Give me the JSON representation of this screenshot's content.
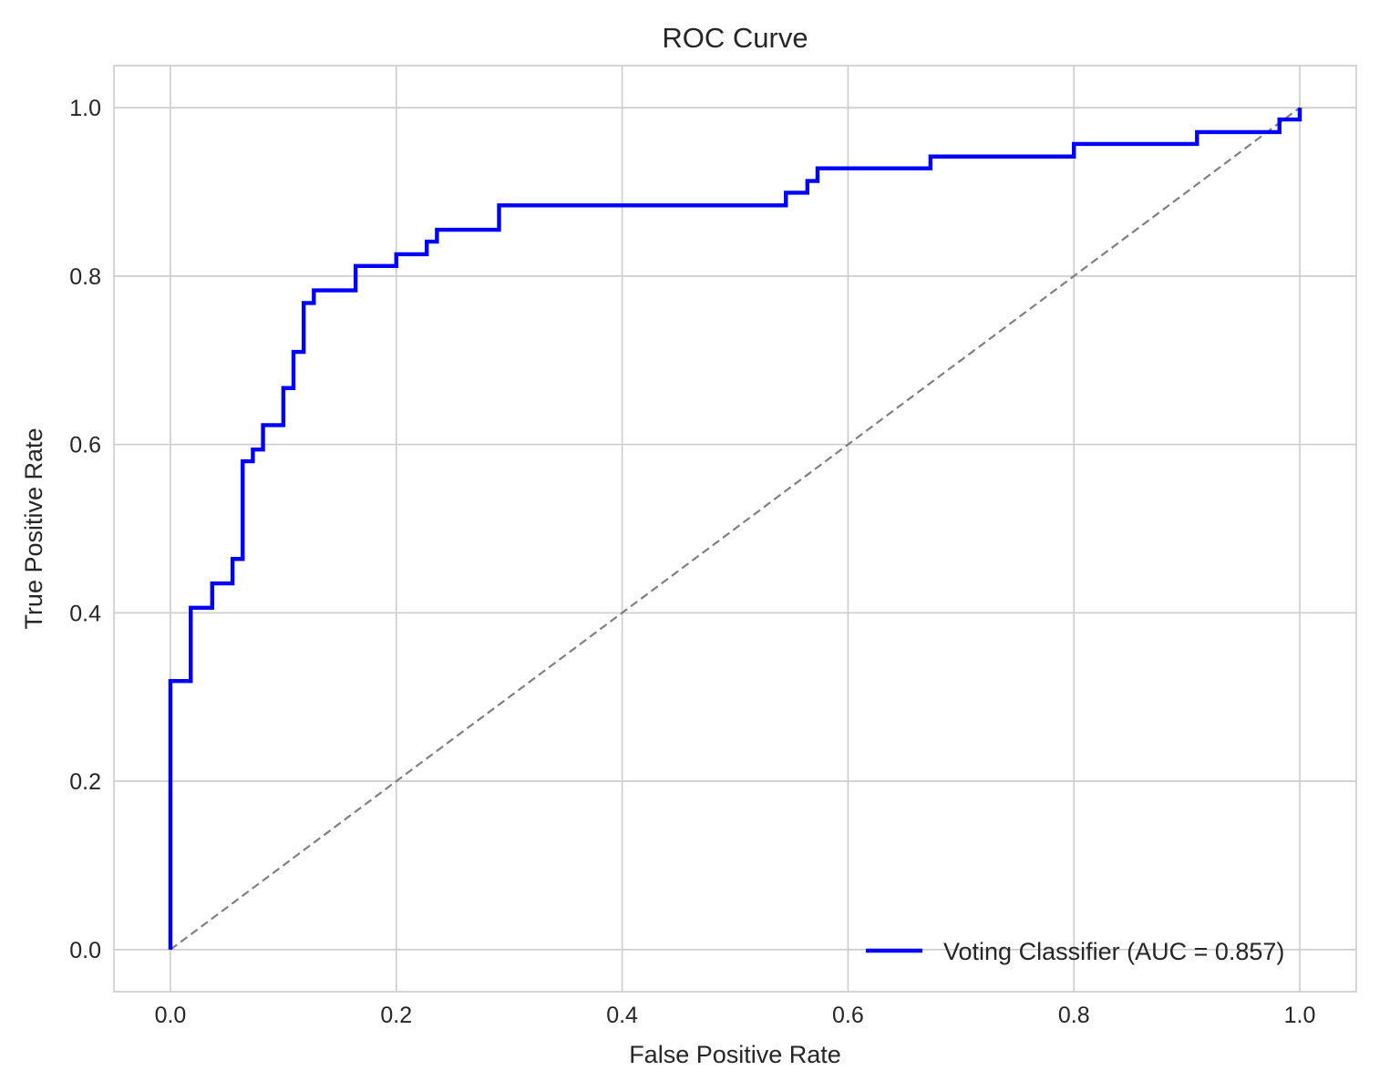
{
  "chart_data": {
    "type": "line",
    "title": "ROC Curve",
    "xlabel": "False Positive Rate",
    "ylabel": "True Positive Rate",
    "xlim": [
      -0.05,
      1.05
    ],
    "ylim": [
      -0.05,
      1.05
    ],
    "xticks": [
      0.0,
      0.2,
      0.4,
      0.6,
      0.8,
      1.0
    ],
    "yticks": [
      0.0,
      0.2,
      0.4,
      0.6,
      0.8,
      1.0
    ],
    "xtick_labels": [
      "0.0",
      "0.2",
      "0.4",
      "0.6",
      "0.8",
      "1.0"
    ],
    "ytick_labels": [
      "0.0",
      "0.2",
      "0.4",
      "0.6",
      "0.8",
      "1.0"
    ],
    "grid": true,
    "legend_position": "lower right",
    "series": [
      {
        "name": "Voting Classifier (AUC = 0.857)",
        "color": "#0000ff",
        "style": "solid",
        "x": [
          0.0,
          0.0,
          0.018,
          0.018,
          0.037,
          0.037,
          0.055,
          0.055,
          0.064,
          0.064,
          0.073,
          0.073,
          0.082,
          0.082,
          0.1,
          0.1,
          0.109,
          0.109,
          0.118,
          0.118,
          0.127,
          0.127,
          0.164,
          0.164,
          0.2,
          0.2,
          0.227,
          0.227,
          0.236,
          0.236,
          0.291,
          0.291,
          0.545,
          0.545,
          0.564,
          0.564,
          0.573,
          0.573,
          0.673,
          0.673,
          0.8,
          0.8,
          0.909,
          0.909,
          0.982,
          0.982,
          1.0,
          1.0
        ],
        "y": [
          0.0,
          0.319,
          0.319,
          0.406,
          0.406,
          0.435,
          0.435,
          0.464,
          0.464,
          0.58,
          0.58,
          0.594,
          0.594,
          0.623,
          0.623,
          0.667,
          0.667,
          0.71,
          0.71,
          0.768,
          0.768,
          0.783,
          0.783,
          0.812,
          0.812,
          0.826,
          0.826,
          0.841,
          0.841,
          0.855,
          0.855,
          0.884,
          0.884,
          0.899,
          0.899,
          0.913,
          0.913,
          0.928,
          0.928,
          0.942,
          0.942,
          0.957,
          0.957,
          0.971,
          0.971,
          0.986,
          0.986,
          1.0
        ]
      },
      {
        "name": "",
        "color": "#808080",
        "style": "dashed",
        "x": [
          0.0,
          1.0
        ],
        "y": [
          0.0,
          1.0
        ]
      }
    ]
  }
}
